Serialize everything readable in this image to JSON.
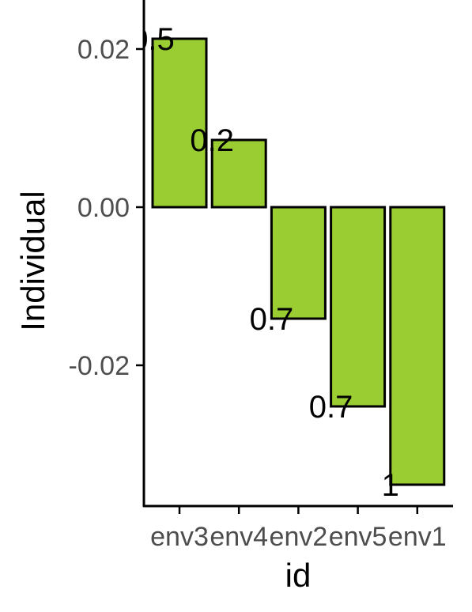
{
  "chart_data": {
    "type": "bar",
    "categories": [
      "env3",
      "env4",
      "env2",
      "env5",
      "env1"
    ],
    "values": [
      0.0213,
      0.0085,
      -0.0141,
      -0.0252,
      -0.0351
    ],
    "data_labels": [
      "0.5",
      "0.2",
      "0.7",
      "0.7",
      "1"
    ],
    "xlabel": "id",
    "ylabel": "Individual",
    "ylim": [
      -0.0376,
      0.024
    ],
    "yticks": [
      0.02,
      0.0,
      -0.02
    ],
    "ytick_labels": [
      "0.02",
      "0.00",
      "-0.02"
    ],
    "grid": false,
    "legend": "none",
    "bar_fill": "#9acd32",
    "bar_stroke": "#000000",
    "axis_color": "#000000"
  }
}
